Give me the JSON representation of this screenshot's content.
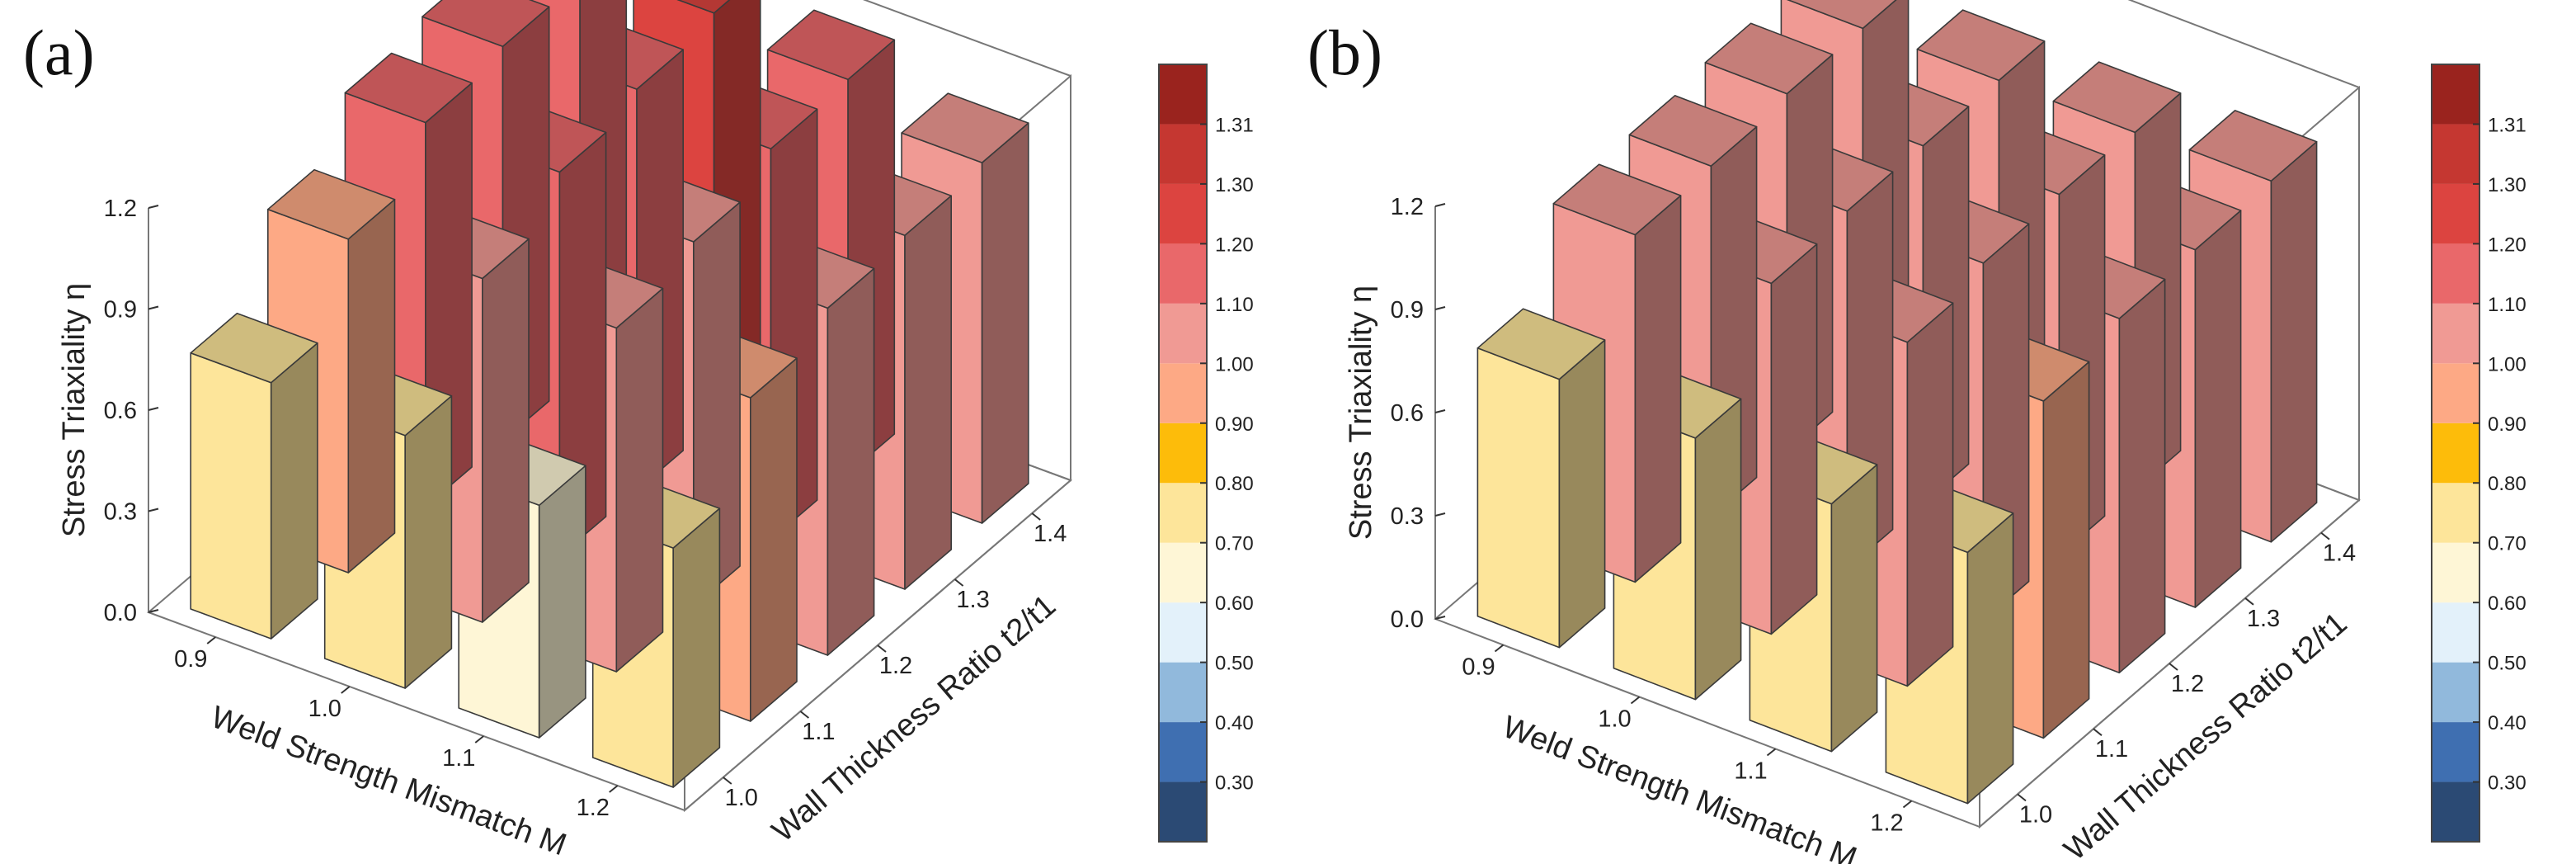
{
  "figure": {
    "colorbar": {
      "levels": [
        {
          "lo": 0.2,
          "hi": 0.3,
          "color": "#2b4a74"
        },
        {
          "lo": 0.3,
          "hi": 0.4,
          "color": "#3f6fb1"
        },
        {
          "lo": 0.4,
          "hi": 0.5,
          "color": "#91b9dc"
        },
        {
          "lo": 0.5,
          "hi": 0.6,
          "color": "#e3f1fa"
        },
        {
          "lo": 0.6,
          "hi": 0.7,
          "color": "#fef6d6"
        },
        {
          "lo": 0.7,
          "hi": 0.8,
          "color": "#fde59a"
        },
        {
          "lo": 0.8,
          "hi": 0.9,
          "color": "#fdbc0a"
        },
        {
          "lo": 0.9,
          "hi": 1.0,
          "color": "#fda985"
        },
        {
          "lo": 1.0,
          "hi": 1.1,
          "color": "#f09a94"
        },
        {
          "lo": 1.1,
          "hi": 1.2,
          "color": "#e9686a"
        },
        {
          "lo": 1.2,
          "hi": 1.3,
          "color": "#dc4440"
        },
        {
          "lo": 1.3,
          "hi": 1.31,
          "color": "#c53731"
        },
        {
          "lo": 1.31,
          "hi": 1.4,
          "color": "#9a231e"
        }
      ],
      "tick_labels": [
        "0.30",
        "0.40",
        "0.50",
        "0.60",
        "0.70",
        "0.80",
        "0.90",
        "1.00",
        "1.10",
        "1.20",
        "1.30",
        "1.31"
      ]
    }
  },
  "chart_data": [
    {
      "type": "bar3d",
      "panel_label": "(a)",
      "zlabel": "Stress Triaxiality η",
      "zlim": [
        0,
        1.2
      ],
      "z_ticks": [
        "0.0",
        "0.3",
        "0.6",
        "0.9",
        "1.2"
      ],
      "xlabel": "Weld Strength Mismatch M",
      "x_categories": [
        "0.9",
        "1.0",
        "1.1",
        "1.2"
      ],
      "ylabel": "Wall Thickness Ratio t2/t1",
      "y_categories": [
        "1.0",
        "1.1",
        "1.2",
        "1.3",
        "1.4"
      ],
      "values": [
        [
          0.76,
          0.99,
          1.14,
          1.17,
          1.18
        ],
        [
          0.75,
          1.02,
          1.14,
          1.19,
          1.22
        ],
        [
          0.69,
          1.02,
          1.08,
          1.16,
          1.17
        ],
        [
          0.71,
          0.96,
          1.03,
          1.05,
          1.07
        ]
      ]
    },
    {
      "type": "bar3d",
      "panel_label": "(b)",
      "zlabel": "Stress Triaxiality η",
      "zlim": [
        0,
        1.2
      ],
      "z_ticks": [
        "0.0",
        "0.3",
        "0.6",
        "0.9",
        "1.2"
      ],
      "xlabel": "Weld Strength Mismatch M",
      "x_categories": [
        "0.9",
        "1.0",
        "1.1",
        "1.2"
      ],
      "ylabel": "Wall Thickness Ratio t2/t1",
      "y_categories": [
        "1.0",
        "1.1",
        "1.2",
        "1.3",
        "1.4"
      ],
      "values": [
        [
          0.78,
          1.01,
          1.02,
          1.04,
          1.04
        ],
        [
          0.76,
          1.02,
          1.04,
          1.04,
          1.04
        ],
        [
          0.72,
          1.0,
          1.04,
          1.05,
          1.04
        ],
        [
          0.73,
          0.98,
          1.03,
          1.04,
          1.05
        ]
      ]
    }
  ]
}
